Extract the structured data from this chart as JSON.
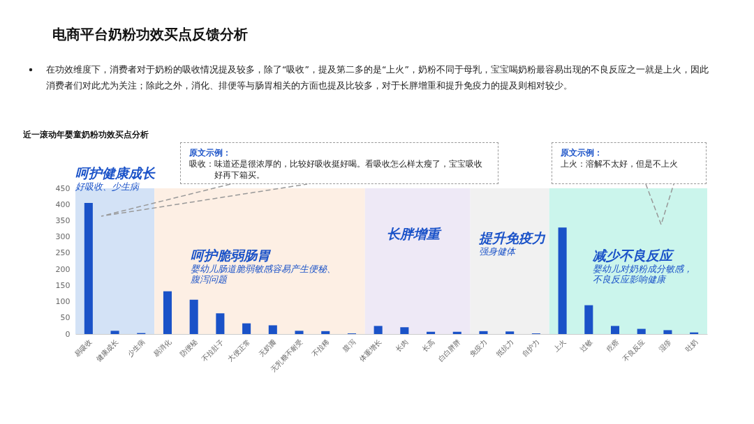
{
  "chart_data": {
    "type": "bar",
    "title": "电商平台奶粉功效买点反馈分析",
    "subtitle": "近一滚动年婴童奶粉功效买点分析",
    "categories": [
      "易吸收",
      "健康成长",
      "少生病",
      "易消化",
      "防便秘",
      "不拉肚子",
      "大便正常",
      "无奶瓣",
      "无乳糖不耐受",
      "不拉稀",
      "腹泻",
      "体重增长",
      "长肉",
      "长高",
      "白白胖胖",
      "免疫力",
      "抵抗力",
      "自护力",
      "上火",
      "过敏",
      "疙瘩",
      "不良反应",
      "湿疹",
      "吐奶"
    ],
    "values": [
      405,
      10,
      3,
      132,
      106,
      64,
      33,
      27,
      10,
      9,
      2,
      25,
      21,
      7,
      7,
      9,
      8,
      2,
      329,
      89,
      25,
      16,
      12,
      5
    ],
    "color": "#1a52c8",
    "ylim": [
      0,
      450
    ],
    "yticks": [
      0,
      50,
      100,
      150,
      200,
      250,
      300,
      350,
      400,
      450
    ],
    "grid": false,
    "bands": [
      {
        "axis": "x",
        "from": "易吸收",
        "to": "少生病",
        "label": "呵护健康成长",
        "color": "#d3e2f6"
      },
      {
        "axis": "x",
        "from": "易消化",
        "to": "腹泻",
        "label": "呵护脆弱肠胃",
        "color": "#fdefe4"
      },
      {
        "axis": "x",
        "from": "体重增长",
        "to": "白白胖胖",
        "label": "长胖增重",
        "color": "#eee9f6"
      },
      {
        "axis": "x",
        "from": "免疫力",
        "to": "自护力",
        "label": "提升免疫力",
        "color": "#f1f1f1"
      },
      {
        "axis": "x",
        "from": "上火",
        "to": "吐奶",
        "label": "减少不良反应",
        "color": "#cbf5ec"
      }
    ],
    "annotations": [
      "在功效维度下，消费者对于奶粉的吸收情况提及较多，除了“吸收”，提及第二多的是“上火”，奶粉不同于母乳，宝宝喝奶粉最容易出现的不良反应之一就是上火，因此消费者们对此尤为关注；除此之外，消化、排便等与肠胃相关的方面也提及比较多，对于长胖增重和提升免疫力的提及则相对较少。",
      "原文示例：",
      "吸收：味道还是很浓厚的，比较好吸收挺好喝。看吸收怎么样太瘦了，宝宝吸收好再下箱买。",
      "原文示例：",
      "上火：溶解不太好，但是不上火",
      "好吸收、少生病",
      "婴幼儿肠道脆弱敏感容易产生便秘、腹泻问题",
      "强身健体",
      "婴幼儿对奶粉成分敏感，不良反应影响健康"
    ]
  }
}
